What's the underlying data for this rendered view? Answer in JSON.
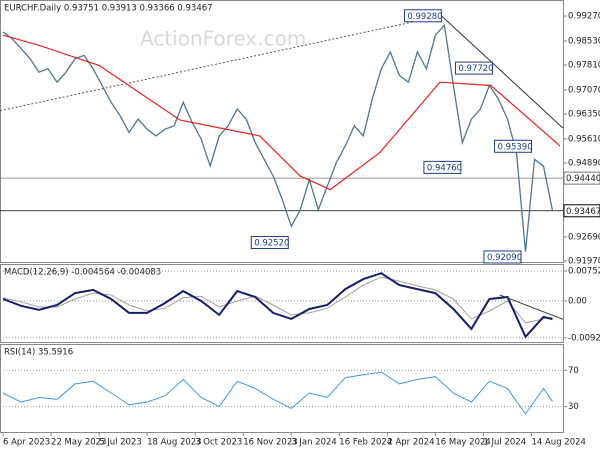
{
  "chart_data": {
    "type": "line",
    "header": "EURCHF.Daily 0.93751 0.93913 0.93366 0.93467",
    "watermark": "ActionForex.com",
    "xlim": [
      -2,
      373
    ],
    "xticks": [
      {
        "value": 0,
        "label": "6 Apr 2023"
      },
      {
        "value": 32,
        "label": "22 May 2023"
      },
      {
        "value": 64,
        "label": "5 Jul 2023"
      },
      {
        "value": 96,
        "label": "18 Aug 2023"
      },
      {
        "value": 128,
        "label": "3 Oct 2023"
      },
      {
        "value": 160,
        "label": "16 Nov 2023"
      },
      {
        "value": 192,
        "label": "3 Jan 2024"
      },
      {
        "value": 224,
        "label": "16 Feb 2024"
      },
      {
        "value": 256,
        "label": "2 Apr 2024"
      },
      {
        "value": 288,
        "label": "16 May 2024"
      },
      {
        "value": 320,
        "label": "1 Jul 2024"
      },
      {
        "value": 352,
        "label": "14 Aug 2024"
      }
    ],
    "ylim": [
      0.9194,
      0.9975
    ],
    "yticks": [
      {
        "value": 0.9927,
        "label": "0.99270"
      },
      {
        "value": 0.9853,
        "label": "0.98530"
      },
      {
        "value": 0.9781,
        "label": "0.97810"
      },
      {
        "value": 0.9707,
        "label": "0.97070"
      },
      {
        "value": 0.9635,
        "label": "0.96350"
      },
      {
        "value": 0.9561,
        "label": "0.95610"
      },
      {
        "value": 0.9489,
        "label": "0.94890"
      },
      {
        "value": 0.9269,
        "label": "0.92690"
      },
      {
        "value": 0.9197,
        "label": "0.91970"
      }
    ],
    "price": {
      "color": "#4f7494",
      "x": [
        0,
        6,
        12,
        18,
        24,
        30,
        36,
        42,
        48,
        54,
        60,
        66,
        72,
        78,
        84,
        90,
        96,
        102,
        108,
        114,
        120,
        126,
        132,
        138,
        144,
        150,
        156,
        162,
        168,
        174,
        180,
        186,
        192,
        198,
        204,
        210,
        216,
        222,
        228,
        234,
        240,
        246,
        252,
        258,
        264,
        270,
        276,
        282,
        288,
        294,
        300,
        306,
        312,
        318,
        324,
        330,
        336,
        342,
        348,
        354,
        360,
        366
      ],
      "values": [
        0.988,
        0.986,
        0.983,
        0.98,
        0.976,
        0.977,
        0.973,
        0.976,
        0.98,
        0.981,
        0.977,
        0.972,
        0.967,
        0.963,
        0.958,
        0.962,
        0.959,
        0.957,
        0.959,
        0.96,
        0.967,
        0.961,
        0.956,
        0.948,
        0.957,
        0.96,
        0.965,
        0.962,
        0.955,
        0.95,
        0.945,
        0.938,
        0.93,
        0.935,
        0.944,
        0.935,
        0.942,
        0.949,
        0.954,
        0.96,
        0.957,
        0.968,
        0.977,
        0.982,
        0.975,
        0.973,
        0.982,
        0.977,
        0.987,
        0.99,
        0.972,
        0.955,
        0.962,
        0.965,
        0.972,
        0.968,
        0.962,
        0.952,
        0.9225,
        0.95,
        0.948,
        0.9347
      ]
    },
    "ma": {
      "color": "#e8231f",
      "x": [
        0,
        24,
        64,
        118,
        171,
        198,
        218,
        251,
        291,
        325,
        371
      ],
      "values": [
        0.987,
        0.984,
        0.978,
        0.9617,
        0.957,
        0.945,
        0.941,
        0.952,
        0.973,
        0.972,
        0.954
      ]
    },
    "trendlines": [
      {
        "x": [
          -2,
          292
        ],
        "values": [
          0.9645,
          0.9928
        ],
        "color": "#555555",
        "dash": true
      },
      {
        "x": [
          292,
          373
        ],
        "values": [
          0.9928,
          0.9593
        ],
        "color": "#333333",
        "dash": false
      }
    ],
    "annotations": [
      {
        "x": 292,
        "value": 0.9928,
        "label": "0.99280"
      },
      {
        "x": 326,
        "value": 0.9772,
        "label": "0.97720"
      },
      {
        "x": 352,
        "value": 0.9539,
        "label": "0.95390"
      },
      {
        "x": 305,
        "value": 0.9476,
        "label": "0.94760"
      },
      {
        "x": 190,
        "value": 0.9252,
        "label": "0.92520"
      },
      {
        "x": 345,
        "value": 0.9209,
        "label": "0.92090"
      }
    ],
    "levels": [
      {
        "value": 0.9444,
        "label": "0.94440",
        "color": "#777777"
      },
      {
        "value": 0.93467,
        "label": "0.93467",
        "color": "#000000"
      }
    ],
    "macd": {
      "label": "MACD(12,26,9) -0.004564 -0.004083",
      "ylim": [
        -0.0103,
        0.0093
      ],
      "yticks": [
        0.007525,
        {
          "value": 0,
          "label": "0.00"
        },
        -0.009252
      ],
      "x": [
        0,
        12,
        24,
        36,
        48,
        60,
        72,
        84,
        96,
        108,
        120,
        132,
        144,
        156,
        168,
        180,
        192,
        204,
        216,
        228,
        240,
        252,
        264,
        276,
        288,
        300,
        312,
        324,
        336,
        348,
        360,
        366
      ],
      "macd": {
        "color": "#14206e",
        "values": [
          0.0005,
          -0.0012,
          -0.0022,
          -0.001,
          0.002,
          0.0028,
          0.0005,
          -0.003,
          -0.003,
          -0.0005,
          0.0025,
          0.0,
          -0.0035,
          0.0025,
          0.001,
          -0.003,
          -0.0045,
          -0.002,
          -0.001,
          0.003,
          0.0055,
          0.007,
          0.004,
          0.003,
          0.002,
          -0.002,
          -0.007,
          0.0005,
          0.001,
          -0.009,
          -0.004,
          -0.004564
        ]
      },
      "signal": {
        "color": "#a0a0a0",
        "values": [
          0.0008,
          -0.0002,
          -0.0015,
          -0.0015,
          0.0005,
          0.002,
          0.0015,
          -0.001,
          -0.0025,
          -0.0018,
          0.0008,
          0.0012,
          -0.0015,
          0.0,
          0.0012,
          -0.001,
          -0.0035,
          -0.003,
          -0.0018,
          0.001,
          0.004,
          0.006,
          0.005,
          0.0038,
          0.0028,
          0.0005,
          -0.0045,
          -0.0025,
          0.0,
          -0.0055,
          -0.0045,
          -0.004083
        ]
      },
      "trendline": {
        "x": [
          331,
          373
        ],
        "values": [
          0.0015,
          -0.0046
        ],
        "color": "#333333"
      }
    },
    "rsi": {
      "label": "RSI(14) 35.5916",
      "color": "#3d9be9",
      "ylim": [
        2,
        99
      ],
      "yticks": [
        70,
        30
      ],
      "x": [
        0,
        12,
        24,
        36,
        48,
        60,
        72,
        84,
        96,
        108,
        120,
        132,
        144,
        156,
        168,
        180,
        192,
        204,
        216,
        228,
        240,
        252,
        264,
        276,
        288,
        300,
        312,
        324,
        336,
        348,
        360,
        366
      ],
      "values": [
        45,
        35,
        40,
        38,
        55,
        58,
        45,
        32,
        35,
        42,
        60,
        40,
        30,
        58,
        50,
        38,
        28,
        45,
        40,
        62,
        65,
        68,
        55,
        60,
        63,
        45,
        35,
        58,
        50,
        22,
        50,
        35.5916
      ]
    }
  }
}
